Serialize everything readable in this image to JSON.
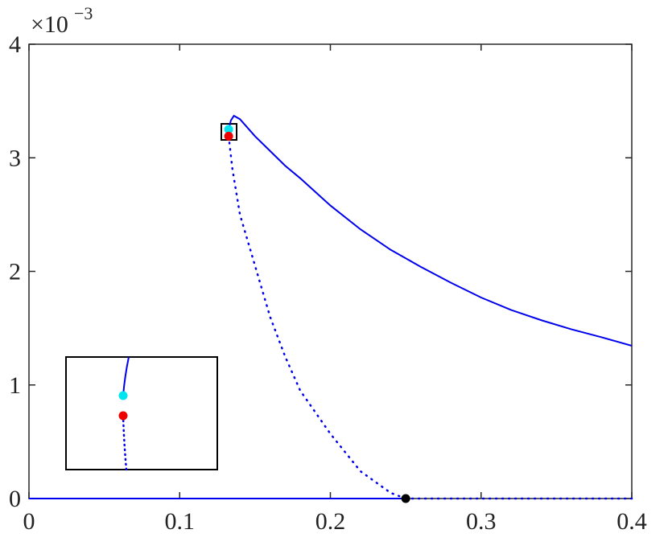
{
  "chart_data": {
    "type": "line",
    "y_multiplier": "×10",
    "y_exponent": "−3",
    "xlim": [
      0,
      0.4
    ],
    "ylim": [
      0,
      4
    ],
    "xticks": [
      0,
      0.1,
      0.2,
      0.3,
      0.4
    ],
    "yticks": [
      0,
      1,
      2,
      3,
      4
    ],
    "series": [
      {
        "style": "solid",
        "color": "#0000ee",
        "x": [
          0.1325,
          0.134,
          0.136,
          0.14,
          0.15,
          0.16,
          0.17,
          0.18,
          0.2,
          0.22,
          0.24,
          0.26,
          0.28,
          0.3,
          0.32,
          0.34,
          0.36,
          0.38,
          0.4
        ],
        "values": [
          3.25,
          3.33,
          3.37,
          3.34,
          3.19,
          3.06,
          2.93,
          2.82,
          2.58,
          2.37,
          2.19,
          2.04,
          1.9,
          1.77,
          1.66,
          1.57,
          1.49,
          1.42,
          1.345
        ]
      },
      {
        "style": "solid",
        "color": "#0000ee",
        "x": [
          0,
          0.25
        ],
        "values": [
          0,
          0
        ]
      },
      {
        "style": "dotted",
        "color": "#0000ee",
        "x": [
          0.1325,
          0.135,
          0.14,
          0.15,
          0.16,
          0.17,
          0.18,
          0.2,
          0.22,
          0.24,
          0.25
        ],
        "values": [
          3.19,
          2.9,
          2.5,
          2.05,
          1.6,
          1.25,
          0.95,
          0.57,
          0.24,
          0.05,
          0
        ]
      },
      {
        "style": "dotted",
        "color": "#0000ee",
        "x": [
          0.25,
          0.4
        ],
        "values": [
          0,
          0
        ]
      },
      {
        "style": "marker",
        "color": "#00e5ee",
        "x": [
          0.1325
        ],
        "values": [
          3.25
        ]
      },
      {
        "style": "marker",
        "color": "#ee0000",
        "x": [
          0.1325
        ],
        "values": [
          3.19
        ]
      },
      {
        "style": "marker",
        "color": "#000000",
        "x": [
          0.25
        ],
        "values": [
          0
        ]
      }
    ]
  }
}
